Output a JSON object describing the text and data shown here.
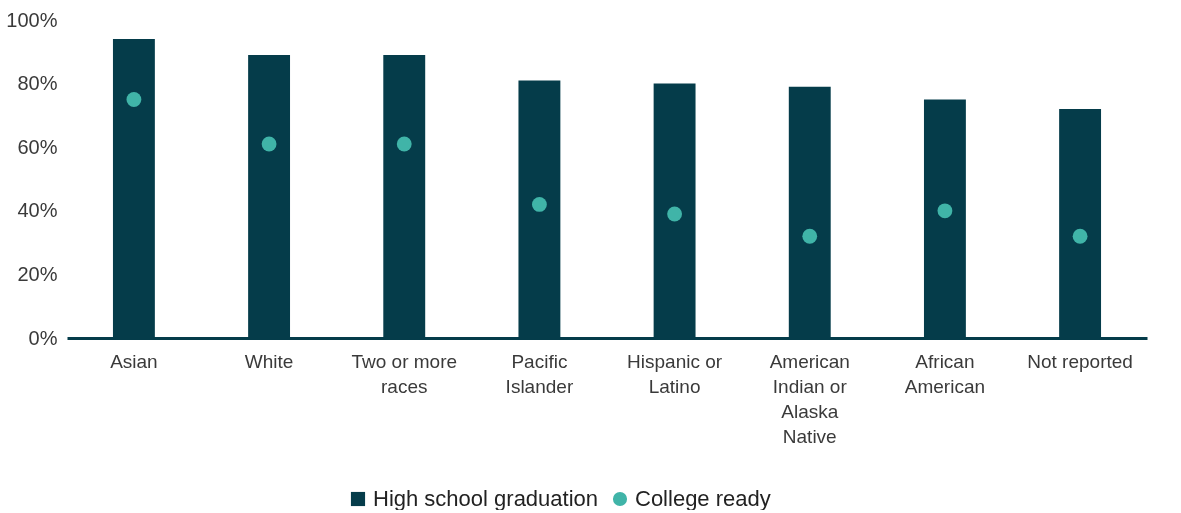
{
  "chart_data": {
    "type": "bar",
    "categories": [
      "Asian",
      "White",
      "Two or more races",
      "Pacific Islander",
      "Hispanic or Latino",
      "American Indian or Alaska Native",
      "African American",
      "Not reported"
    ],
    "series": [
      {
        "name": "High school graduation",
        "color": "#053c4a",
        "values": [
          94,
          89,
          89,
          81,
          80,
          79,
          75,
          72
        ]
      },
      {
        "name": "College ready",
        "type": "scatter",
        "marker": "circle",
        "color": "#40b4a8",
        "values": [
          75,
          61,
          61,
          42,
          39,
          32,
          40,
          32
        ]
      }
    ],
    "ylim": [
      0,
      100
    ],
    "yticks": [
      {
        "value": 0,
        "label": "0%"
      },
      {
        "value": 20,
        "label": "20%"
      },
      {
        "value": 40,
        "label": "40%"
      },
      {
        "value": 60,
        "label": "60%"
      },
      {
        "value": 80,
        "label": "80%"
      },
      {
        "value": 100,
        "label": "100%"
      }
    ],
    "grid": false,
    "legend": "bottom"
  }
}
